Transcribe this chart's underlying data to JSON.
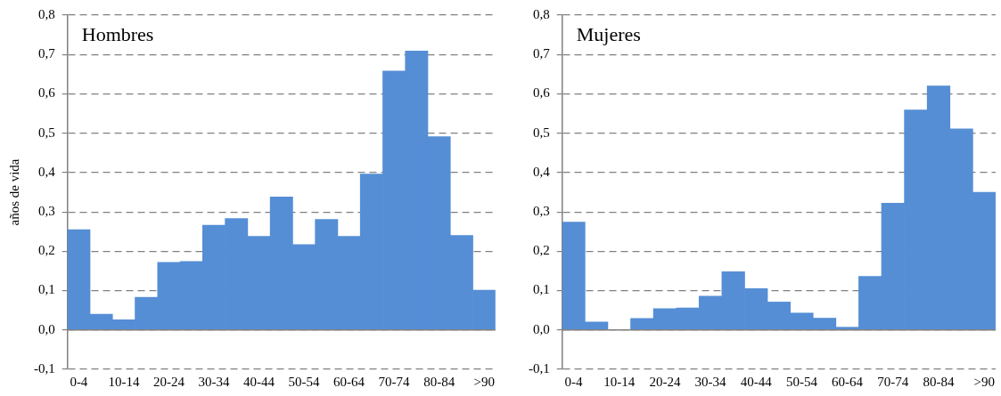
{
  "chart_data": [
    {
      "type": "bar",
      "title": "Hombres",
      "ylabel": "años de vida",
      "categories": [
        "0-4",
        null,
        "10-14",
        null,
        "20-24",
        null,
        "30-34",
        null,
        "40-44",
        null,
        "50-54",
        null,
        "60-64",
        null,
        "70-74",
        null,
        "80-84",
        null,
        ">90"
      ],
      "values": [
        0.255,
        0.04,
        0.026,
        0.083,
        0.172,
        0.174,
        0.266,
        0.283,
        0.238,
        0.338,
        0.217,
        0.281,
        0.238,
        0.396,
        0.658,
        0.709,
        0.491,
        0.24,
        0.101
      ],
      "color": "#558ed5",
      "ylim": [
        -0.1,
        0.8
      ],
      "yticks": [
        {
          "value": -0.1,
          "label": "-0,1"
        },
        {
          "value": 0,
          "label": "0,0"
        },
        {
          "value": 0.1,
          "label": "0,1"
        },
        {
          "value": 0.2,
          "label": "0,2"
        },
        {
          "value": 0.3,
          "label": "0,3"
        },
        {
          "value": 0.4,
          "label": "0,4"
        },
        {
          "value": 0.5,
          "label": "0,5"
        },
        {
          "value": 0.6,
          "label": "0,6"
        },
        {
          "value": 0.7,
          "label": "0,7"
        },
        {
          "value": 0.8,
          "label": "0,8"
        }
      ],
      "grid": "y",
      "legend": false
    },
    {
      "type": "bar",
      "title": "Mujeres",
      "categories": [
        "0-4",
        null,
        "10-14",
        null,
        "20-24",
        null,
        "30-34",
        null,
        "40-44",
        null,
        "50-54",
        null,
        "60-64",
        null,
        "70-74",
        null,
        "80-84",
        null,
        ">90"
      ],
      "values": [
        0.274,
        0.02,
        null,
        0.029,
        0.054,
        0.056,
        0.086,
        0.148,
        0.105,
        0.071,
        0.043,
        0.03,
        0.007,
        0.136,
        0.322,
        0.559,
        0.62,
        0.511,
        0.35
      ],
      "color": "#558ed5",
      "ylim": [
        -0.1,
        0.8
      ],
      "yticks": [
        {
          "value": -0.1,
          "label": "-0,1"
        },
        {
          "value": 0,
          "label": "0,0"
        },
        {
          "value": 0.1,
          "label": "0,1"
        },
        {
          "value": 0.2,
          "label": "0,2"
        },
        {
          "value": 0.3,
          "label": "0,3"
        },
        {
          "value": 0.4,
          "label": "0,4"
        },
        {
          "value": 0.5,
          "label": "0,5"
        },
        {
          "value": 0.6,
          "label": "0,6"
        },
        {
          "value": 0.7,
          "label": "0,7"
        },
        {
          "value": 0.8,
          "label": "0,8"
        }
      ],
      "grid": "y",
      "legend": false
    }
  ]
}
